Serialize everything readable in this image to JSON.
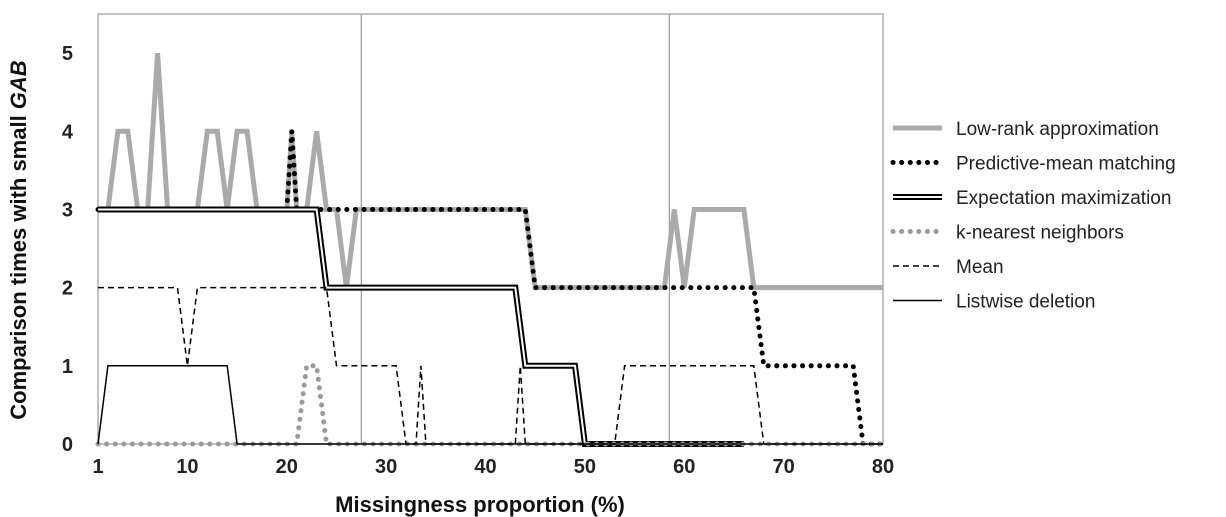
{
  "chart_data": {
    "type": "line",
    "xlabel": "Missingness proportion (%)",
    "ylabel_prefix": "Comparison times with small ",
    "ylabel_emph": "GAB",
    "xlim": [
      1,
      80
    ],
    "ylim": [
      0,
      5.5
    ],
    "x_ticks": [
      1,
      10,
      20,
      30,
      40,
      50,
      60,
      70,
      80
    ],
    "y_ticks": [
      0,
      1,
      2,
      3,
      4,
      5
    ],
    "vertical_reference_lines": [
      27.5,
      58.5
    ],
    "legend_position": "right",
    "series": [
      {
        "name": "Low-rank approximation",
        "color": "#aaaaaa",
        "style": "thick-solid",
        "points": [
          [
            1,
            3
          ],
          [
            2,
            3
          ],
          [
            3,
            4
          ],
          [
            4,
            4
          ],
          [
            5,
            3
          ],
          [
            6,
            3
          ],
          [
            7,
            5
          ],
          [
            8,
            3
          ],
          [
            11,
            3
          ],
          [
            12,
            4
          ],
          [
            13,
            4
          ],
          [
            14,
            3
          ],
          [
            15,
            4
          ],
          [
            16,
            4
          ],
          [
            17,
            3
          ],
          [
            20,
            3
          ],
          [
            20.5,
            4
          ],
          [
            21,
            3
          ],
          [
            22,
            3
          ],
          [
            23,
            4
          ],
          [
            24,
            3
          ],
          [
            25,
            3
          ],
          [
            26,
            2
          ],
          [
            27,
            3
          ],
          [
            27.5,
            3
          ],
          [
            44,
            3
          ],
          [
            45,
            2
          ],
          [
            58,
            2
          ],
          [
            59,
            3
          ],
          [
            60,
            2
          ],
          [
            61,
            3
          ],
          [
            66,
            3
          ],
          [
            67,
            2
          ],
          [
            80,
            2
          ]
        ]
      },
      {
        "name": "Predictive-mean matching",
        "color": "#000000",
        "style": "dotted",
        "points": [
          [
            1,
            3
          ],
          [
            19,
            3
          ],
          [
            20,
            3
          ],
          [
            20.5,
            4
          ],
          [
            21,
            3
          ],
          [
            44,
            3
          ],
          [
            45,
            2
          ],
          [
            67,
            2
          ],
          [
            68,
            1
          ],
          [
            77,
            1
          ],
          [
            78,
            0
          ],
          [
            80,
            0
          ]
        ]
      },
      {
        "name": "Expectation maximization",
        "color": "#000000",
        "style": "double",
        "points": [
          [
            1,
            3
          ],
          [
            23,
            3
          ],
          [
            24,
            2
          ],
          [
            43,
            2
          ],
          [
            44,
            1
          ],
          [
            49,
            1
          ],
          [
            50,
            0
          ],
          [
            66,
            0
          ]
        ]
      },
      {
        "name": "k-nearest neighbors",
        "color": "#9a9a9a",
        "style": "gray-dotted",
        "points": [
          [
            1,
            0
          ],
          [
            21,
            0
          ],
          [
            22,
            1
          ],
          [
            23,
            1
          ],
          [
            24,
            0
          ],
          [
            80,
            0
          ]
        ]
      },
      {
        "name": "Mean",
        "color": "#000000",
        "style": "dashed",
        "points": [
          [
            1,
            2
          ],
          [
            9,
            2
          ],
          [
            10,
            1
          ],
          [
            11,
            2
          ],
          [
            24,
            2
          ],
          [
            25,
            1
          ],
          [
            31,
            1
          ],
          [
            32,
            0
          ],
          [
            33,
            0
          ],
          [
            33.5,
            1
          ],
          [
            34,
            0
          ],
          [
            43,
            0
          ],
          [
            43.5,
            1
          ],
          [
            44,
            0
          ],
          [
            53,
            0
          ],
          [
            54,
            1
          ],
          [
            67,
            1
          ],
          [
            68,
            0
          ],
          [
            80,
            0
          ]
        ]
      },
      {
        "name": "Listwise deletion",
        "color": "#000000",
        "style": "thin-solid",
        "points": [
          [
            1,
            0
          ],
          [
            2,
            1
          ],
          [
            14,
            1
          ],
          [
            15,
            0
          ],
          [
            80,
            0
          ]
        ]
      }
    ]
  }
}
